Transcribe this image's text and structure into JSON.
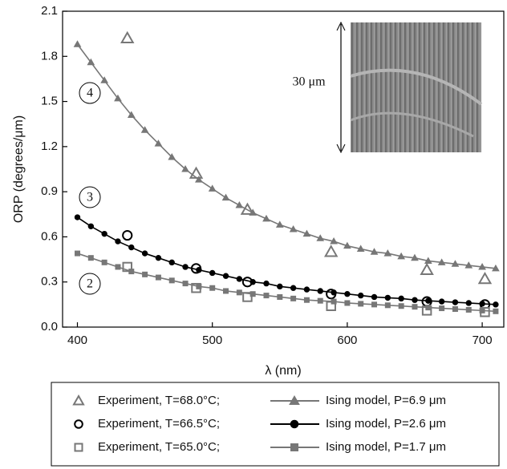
{
  "chart_data": {
    "type": "line",
    "x_label": "λ (nm)",
    "y_label": "ORP (degrees/μm)",
    "xlim": [
      389,
      716
    ],
    "ylim": [
      0,
      2.1
    ],
    "xticks": [
      400,
      500,
      600,
      700
    ],
    "yticks": [
      {
        "value": 0,
        "label": "0.0"
      },
      0.3,
      0.6,
      0.9,
      1.2,
      1.5,
      1.8,
      2.1
    ],
    "annotations": [
      "4",
      "3",
      "2",
      "30 μm"
    ],
    "series": [
      {
        "name": "Experiment, T=68.0°C;",
        "color": "#777777",
        "marker": "triangle",
        "line": false,
        "x": [
          437,
          488,
          526,
          588,
          659,
          702
        ],
        "values": [
          1.92,
          1.02,
          0.78,
          0.5,
          0.38,
          0.32
        ]
      },
      {
        "name": "Ising model, P=6.9 μm",
        "color": "#777777",
        "marker": "triangle",
        "line": true,
        "x": [
          400,
          410,
          420,
          430,
          440,
          450,
          460,
          470,
          480,
          490,
          500,
          510,
          520,
          530,
          540,
          550,
          560,
          570,
          580,
          590,
          600,
          610,
          620,
          630,
          640,
          650,
          660,
          670,
          680,
          690,
          700,
          710
        ],
        "values": [
          1.88,
          1.76,
          1.64,
          1.52,
          1.41,
          1.31,
          1.22,
          1.13,
          1.05,
          0.98,
          0.92,
          0.86,
          0.81,
          0.76,
          0.72,
          0.68,
          0.65,
          0.62,
          0.59,
          0.57,
          0.54,
          0.52,
          0.5,
          0.49,
          0.47,
          0.46,
          0.44,
          0.43,
          0.42,
          0.41,
          0.4,
          0.39
        ]
      },
      {
        "name": "Experiment, T=66.5°C;",
        "color": "#000000",
        "marker": "circle",
        "line": false,
        "x": [
          437,
          488,
          526,
          588,
          659,
          702
        ],
        "values": [
          0.61,
          0.39,
          0.3,
          0.22,
          0.17,
          0.15
        ]
      },
      {
        "name": "Ising model, P=2.6 μm",
        "color": "#000000",
        "marker": "circle",
        "line": true,
        "x": [
          400,
          410,
          420,
          430,
          440,
          450,
          460,
          470,
          480,
          490,
          500,
          510,
          520,
          530,
          540,
          550,
          560,
          570,
          580,
          590,
          600,
          610,
          620,
          630,
          640,
          650,
          660,
          670,
          680,
          690,
          700,
          710
        ],
        "values": [
          0.73,
          0.67,
          0.62,
          0.57,
          0.53,
          0.49,
          0.46,
          0.43,
          0.4,
          0.38,
          0.36,
          0.34,
          0.32,
          0.3,
          0.29,
          0.27,
          0.26,
          0.25,
          0.24,
          0.23,
          0.22,
          0.21,
          0.2,
          0.195,
          0.19,
          0.18,
          0.175,
          0.17,
          0.165,
          0.16,
          0.155,
          0.15
        ]
      },
      {
        "name": "Experiment, T=65.0°C;",
        "color": "#777777",
        "marker": "square",
        "line": false,
        "x": [
          437,
          488,
          526,
          588,
          659,
          702
        ],
        "values": [
          0.4,
          0.26,
          0.2,
          0.14,
          0.11,
          0.1
        ]
      },
      {
        "name": "Ising model, P=1.7 μm",
        "color": "#777777",
        "marker": "square",
        "line": true,
        "x": [
          400,
          410,
          420,
          430,
          440,
          450,
          460,
          470,
          480,
          490,
          500,
          510,
          520,
          530,
          540,
          550,
          560,
          570,
          580,
          590,
          600,
          610,
          620,
          630,
          640,
          650,
          660,
          670,
          680,
          690,
          700,
          710
        ],
        "values": [
          0.49,
          0.46,
          0.43,
          0.4,
          0.37,
          0.35,
          0.33,
          0.31,
          0.29,
          0.27,
          0.26,
          0.24,
          0.23,
          0.22,
          0.21,
          0.2,
          0.19,
          0.18,
          0.175,
          0.17,
          0.16,
          0.155,
          0.15,
          0.145,
          0.14,
          0.135,
          0.13,
          0.125,
          0.12,
          0.115,
          0.11,
          0.105
        ]
      }
    ]
  }
}
